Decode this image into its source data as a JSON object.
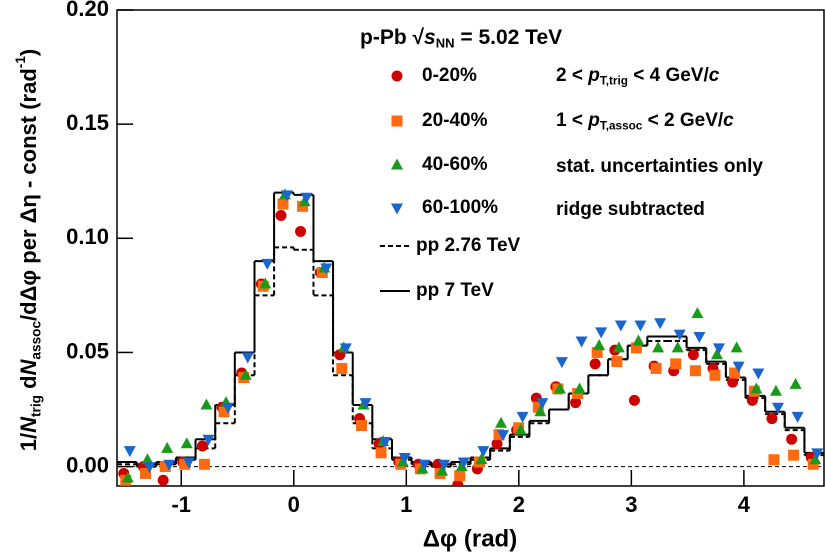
{
  "chart_data": {
    "type": "scatter",
    "title": [
      "p-Pb ",
      "√",
      "s",
      "NN",
      " = 5.02 TeV"
    ],
    "xlabel": "Δφ (rad)",
    "ylabel": [
      "1/",
      "N",
      "trig",
      " d",
      "N",
      "assoc",
      "/dΔφ per Δη - const (rad",
      "-1",
      ")"
    ],
    "annotations": [
      [
        "2 < ",
        "p",
        "T,trig",
        " < 4 GeV/",
        "c"
      ],
      [
        "1 < ",
        "p",
        "T,assoc",
        " < 2 GeV/",
        "c"
      ],
      [
        "stat. uncertainties only"
      ],
      [
        "ridge subtracted"
      ]
    ],
    "xlim": [
      -1.571,
      4.712
    ],
    "ylim": [
      -0.0085,
      0.2
    ],
    "xticks": [
      -1,
      0,
      1,
      2,
      3,
      4
    ],
    "yticks": [
      {
        "value": 0,
        "label": "0.00"
      },
      0.05,
      {
        "value": 0.1,
        "label": "0.10"
      },
      0.15,
      {
        "value": 0.2,
        "label": "0.20"
      }
    ],
    "zero_line": true,
    "x": [
      -1.484,
      -1.309,
      -1.134,
      -0.96,
      -0.785,
      -0.611,
      -0.436,
      -0.262,
      -0.087,
      0.087,
      0.262,
      0.436,
      0.611,
      0.785,
      0.96,
      1.134,
      1.309,
      1.484,
      1.658,
      1.833,
      2.007,
      2.182,
      2.356,
      2.531,
      2.705,
      2.88,
      3.054,
      3.229,
      3.403,
      3.578,
      3.752,
      3.927,
      4.102,
      4.276,
      4.451,
      4.625
    ],
    "series": [
      {
        "name": "0-20%",
        "color": "#cc0000",
        "marker": "circle",
        "values": [
          -0.003,
          0.0,
          -0.006,
          0.002,
          0.009,
          0.026,
          0.041,
          0.08,
          0.11,
          0.103,
          0.085,
          0.049,
          0.021,
          0.01,
          0.002,
          0.001,
          0.001,
          -0.008,
          -0.001,
          0.01,
          0.016,
          0.03,
          0.035,
          0.028,
          0.045,
          0.051,
          0.029,
          0.044,
          0.042,
          0.049,
          0.043,
          0.037,
          0.029,
          0.021,
          0.012,
          0.004
        ]
      },
      {
        "name": "20-40%",
        "color": "#ff6a10",
        "marker": "square",
        "values": [
          -0.006,
          -0.003,
          0.0,
          0.001,
          0.001,
          0.024,
          0.039,
          0.079,
          0.115,
          0.114,
          0.085,
          0.043,
          0.018,
          0.006,
          0.001,
          -0.001,
          -0.003,
          -0.004,
          0.002,
          0.014,
          0.017,
          0.026,
          0.034,
          0.032,
          0.05,
          0.046,
          0.052,
          0.043,
          0.045,
          0.042,
          0.04,
          0.041,
          0.033,
          0.003,
          0.005,
          0.001
        ]
      },
      {
        "name": "40-60%",
        "color": "#1a9a1a",
        "marker": "triangle-up",
        "values": [
          -0.005,
          0.003,
          0.008,
          0.01,
          0.027,
          0.028,
          0.04,
          0.08,
          0.119,
          0.116,
          0.087,
          0.052,
          0.027,
          0.011,
          0.002,
          -0.001,
          -0.002,
          0.0,
          0.003,
          0.019,
          0.016,
          0.024,
          0.034,
          0.034,
          0.053,
          0.052,
          0.055,
          0.052,
          0.052,
          0.067,
          0.049,
          0.052,
          0.034,
          0.033,
          0.036,
          0.003
        ]
      },
      {
        "name": "60-100%",
        "color": "#1a66cc",
        "marker": "triangle-down",
        "values": [
          0.007,
          0.0,
          0.001,
          0.002,
          0.012,
          0.026,
          0.048,
          0.089,
          0.119,
          0.118,
          0.087,
          0.052,
          0.028,
          0.011,
          0.004,
          0.001,
          0.001,
          0.002,
          0.007,
          0.014,
          0.022,
          0.028,
          0.046,
          0.055,
          0.059,
          0.062,
          0.062,
          0.063,
          0.058,
          0.057,
          0.052,
          0.044,
          0.041,
          0.026,
          0.022,
          0.006
        ]
      }
    ],
    "bins": [
      -1.571,
      -1.396,
      -1.222,
      -1.047,
      -0.873,
      -0.698,
      -0.524,
      -0.349,
      -0.175,
      0,
      0.175,
      0.349,
      0.524,
      0.698,
      0.873,
      1.047,
      1.222,
      1.396,
      1.571,
      1.745,
      1.92,
      2.094,
      2.269,
      2.443,
      2.618,
      2.793,
      2.967,
      3.142,
      3.316,
      3.491,
      3.665,
      3.84,
      4.014,
      4.189,
      4.363,
      4.538,
      4.712
    ],
    "lines": [
      {
        "name": "pp 2.76 TeV",
        "color": "#000000",
        "dash": true,
        "values": [
          0.001,
          0.0,
          0.001,
          0.003,
          0.008,
          0.019,
          0.04,
          0.075,
          0.096,
          0.095,
          0.075,
          0.04,
          0.019,
          0.008,
          0.003,
          0.001,
          0.0,
          0.001,
          0.003,
          0.007,
          0.013,
          0.019,
          0.025,
          0.032,
          0.04,
          0.047,
          0.053,
          0.055,
          0.055,
          0.051,
          0.045,
          0.038,
          0.03,
          0.023,
          0.016,
          0.005
        ]
      },
      {
        "name": "pp 7 TeV",
        "color": "#000000",
        "dash": false,
        "values": [
          0.002,
          0.001,
          0.002,
          0.004,
          0.012,
          0.027,
          0.05,
          0.09,
          0.12,
          0.119,
          0.09,
          0.05,
          0.027,
          0.012,
          0.004,
          0.002,
          0.001,
          0.002,
          0.004,
          0.008,
          0.014,
          0.02,
          0.025,
          0.032,
          0.04,
          0.047,
          0.053,
          0.057,
          0.057,
          0.052,
          0.046,
          0.039,
          0.031,
          0.024,
          0.017,
          0.006
        ]
      }
    ]
  }
}
